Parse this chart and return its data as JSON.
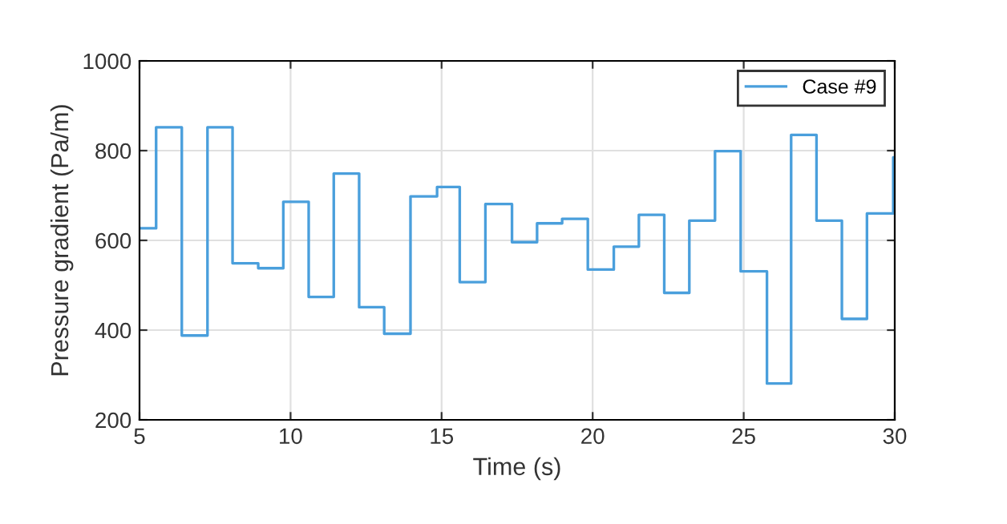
{
  "chart_data": {
    "type": "step",
    "xlabel": "Time (s)",
    "ylabel": "Pressure gradient (Pa/m)",
    "xlim": [
      5,
      30
    ],
    "ylim": [
      200,
      1000
    ],
    "xticks": [
      5,
      10,
      15,
      20,
      25,
      30
    ],
    "yticks": [
      200,
      400,
      600,
      800,
      1000
    ],
    "grid": true,
    "legend": "top right",
    "marker": "none",
    "line_style": "solid",
    "series": [
      {
        "name": "Case #9",
        "color": "#4a9fdc",
        "x": [
          5,
          5.55,
          6.4,
          7.25,
          8.08,
          8.93,
          9.76,
          10.6,
          11.43,
          12.27,
          13.1,
          13.97,
          14.85,
          15.6,
          16.45,
          17.33,
          18.16,
          18.99,
          19.84,
          20.7,
          21.53,
          22.37,
          23.2,
          24.05,
          24.9,
          25.77,
          26.57,
          27.41,
          28.25,
          29.08,
          29.95,
          30
        ],
        "values": [
          627,
          852,
          388,
          852,
          549,
          538,
          686,
          474,
          749,
          451,
          392,
          698,
          719,
          507,
          681,
          596,
          638,
          648,
          535,
          586,
          657,
          483,
          644,
          799,
          531,
          281,
          835,
          644,
          425,
          660,
          785,
          785
        ]
      }
    ]
  }
}
